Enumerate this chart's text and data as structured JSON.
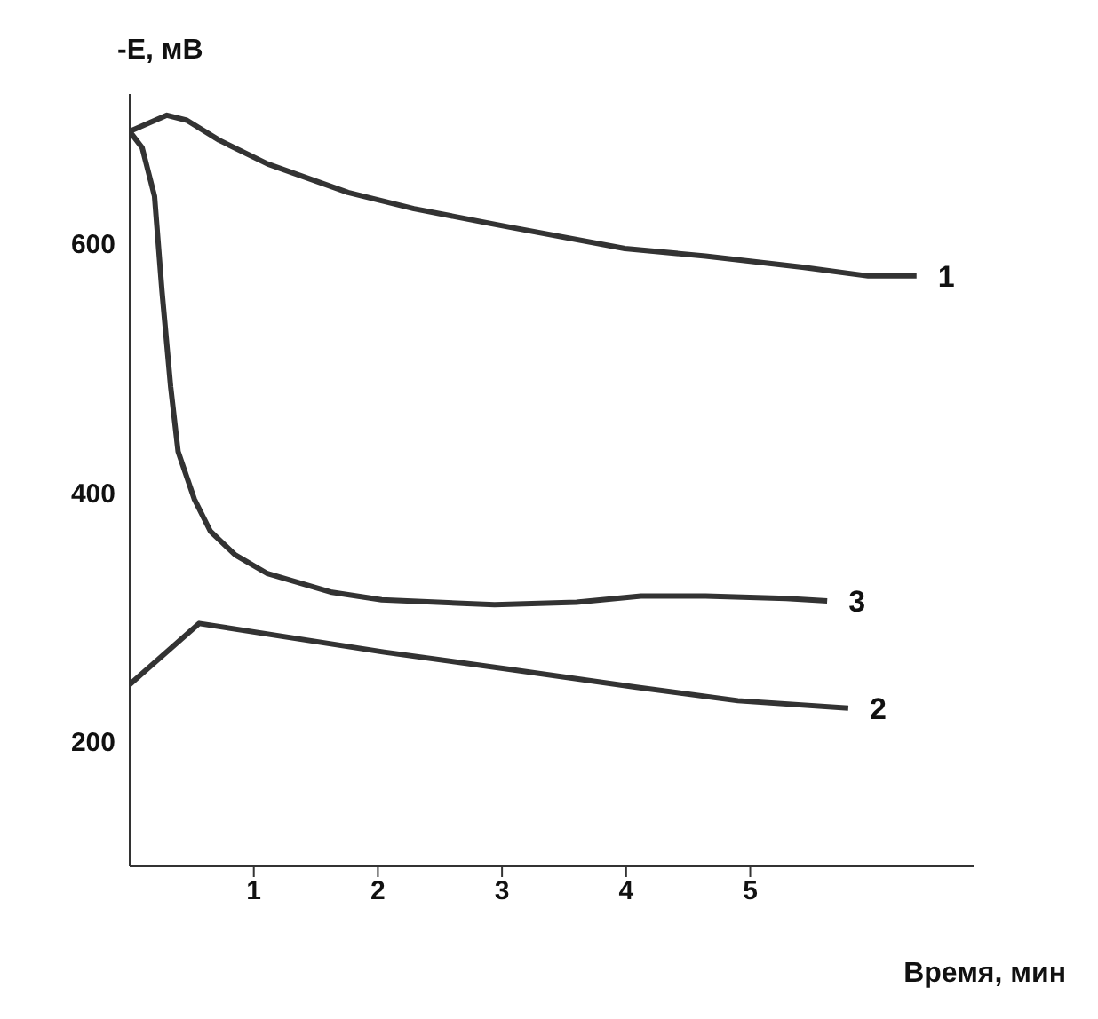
{
  "chart_data": {
    "type": "line",
    "xlabel": "Время, мин",
    "ylabel": "-E, мВ",
    "xlim": [
      0,
      6.8
    ],
    "xticks": [
      1,
      2,
      3,
      4,
      5
    ],
    "ylim": [
      100,
      720
    ],
    "yticks": [
      200,
      400,
      600
    ],
    "grid": false,
    "legend": false,
    "marker": "none",
    "line_style": "solid",
    "series": [
      {
        "name": "1",
        "color": "#333333",
        "x": [
          0,
          0.3,
          0.46,
          0.72,
          1.11,
          1.76,
          2.29,
          3.07,
          3.99,
          4.64,
          5.42,
          5.95,
          6.34
        ],
        "values": [
          690,
          703,
          699,
          683,
          664,
          641,
          628,
          613,
          596,
          590,
          581,
          574,
          574
        ]
      },
      {
        "name": "2",
        "color": "#333333",
        "x": [
          0,
          0.56,
          2.05,
          3.07,
          4.07,
          4.9,
          5.79
        ],
        "values": [
          246,
          295,
          272,
          258,
          244,
          233,
          227
        ]
      },
      {
        "name": "3",
        "color": "#333333",
        "x": [
          0,
          0.1,
          0.2,
          0.26,
          0.33,
          0.39,
          0.52,
          0.65,
          0.85,
          1.11,
          1.63,
          2.03,
          2.94,
          3.6,
          4.12,
          4.64,
          5.29,
          5.62
        ],
        "values": [
          690,
          677,
          638,
          562,
          485,
          433,
          395,
          369,
          350,
          335,
          320,
          314,
          310,
          312,
          317,
          317,
          315,
          313
        ]
      }
    ]
  }
}
